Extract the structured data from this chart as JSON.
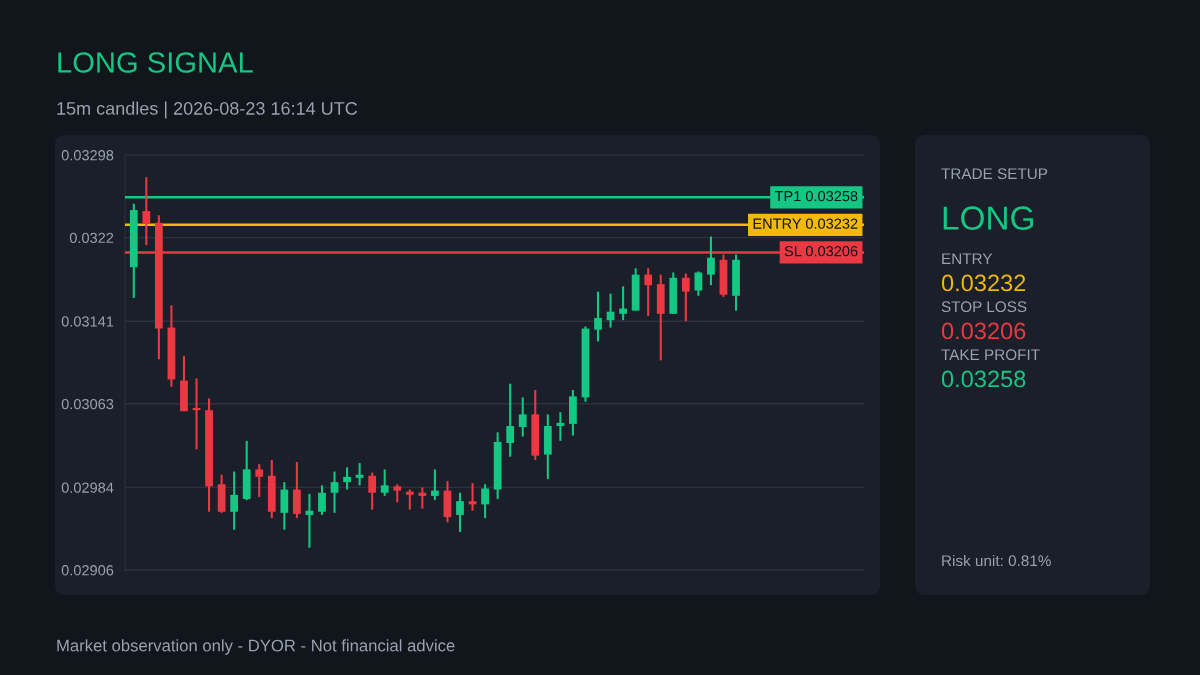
{
  "chart_data": [
    {
      "type": "candlestick",
      "title": "LONG SIGNAL",
      "subtitle": "15m candles | 2026-08-23 16:14 UTC",
      "annotations": [
        "Market observation only - DYOR - Not financial advice"
      ],
      "categories": [
        null,
        null,
        null,
        null,
        null,
        null,
        null,
        null,
        null,
        null,
        null,
        null,
        null,
        null,
        null,
        null,
        null,
        null,
        null,
        null,
        null,
        null,
        null,
        null,
        null,
        null,
        null,
        null,
        null,
        null,
        null,
        null,
        null,
        null,
        null,
        null,
        null,
        null,
        null,
        null,
        null,
        null,
        null,
        null,
        null,
        null,
        null,
        null,
        null
      ],
      "ohlc": [
        [
          0.03192,
          0.03252,
          0.03163,
          0.03246
        ],
        [
          0.03245,
          0.03277,
          0.03213,
          0.03233
        ],
        [
          0.03234,
          0.03241,
          0.03105,
          0.03134
        ],
        [
          0.03135,
          0.03156,
          0.03079,
          0.03086
        ],
        [
          0.03085,
          0.03108,
          0.03056,
          0.03056
        ],
        [
          0.03059,
          0.03087,
          0.0302,
          0.03057
        ],
        [
          0.03057,
          0.03068,
          0.02961,
          0.02985
        ],
        [
          0.02987,
          0.02996,
          0.0296,
          0.02961
        ],
        [
          0.02961,
          0.02999,
          0.02944,
          0.02977
        ],
        [
          0.02973,
          0.03028,
          0.02972,
          0.03001
        ],
        [
          0.03001,
          0.03006,
          0.02975,
          0.02994
        ],
        [
          0.02995,
          0.0301,
          0.02955,
          0.02961
        ],
        [
          0.0296,
          0.02989,
          0.02944,
          0.02982
        ],
        [
          0.02982,
          0.03008,
          0.02955,
          0.02959
        ],
        [
          0.02958,
          0.02978,
          0.02927,
          0.02962
        ],
        [
          0.02961,
          0.02986,
          0.02958,
          0.02979
        ],
        [
          0.02979,
          0.02999,
          0.0296,
          0.02989
        ],
        [
          0.02989,
          0.03003,
          0.02982,
          0.02994
        ],
        [
          0.02993,
          0.03007,
          0.02986,
          0.02996
        ],
        [
          0.02995,
          0.02998,
          0.02963,
          0.02979
        ],
        [
          0.02979,
          0.03001,
          0.02976,
          0.02986
        ],
        [
          0.02985,
          0.02987,
          0.0297,
          0.02981
        ],
        [
          0.0298,
          0.02982,
          0.02963,
          0.02977
        ],
        [
          0.02979,
          0.02984,
          0.02964,
          0.02976
        ],
        [
          0.02976,
          0.03001,
          0.02972,
          0.02981
        ],
        [
          0.02981,
          0.0299,
          0.02951,
          0.02956
        ],
        [
          0.02958,
          0.02979,
          0.02942,
          0.02971
        ],
        [
          0.02971,
          0.02988,
          0.02962,
          0.02968
        ],
        [
          0.02968,
          0.02987,
          0.02955,
          0.02983
        ],
        [
          0.02982,
          0.03036,
          0.02973,
          0.03027
        ],
        [
          0.03026,
          0.03082,
          0.03013,
          0.03042
        ],
        [
          0.03041,
          0.03069,
          0.03032,
          0.03053
        ],
        [
          0.03053,
          0.03076,
          0.0301,
          0.03014
        ],
        [
          0.03015,
          0.03053,
          0.02992,
          0.03042
        ],
        [
          0.03042,
          0.03055,
          0.03028,
          0.03045
        ],
        [
          0.03044,
          0.03076,
          0.03033,
          0.0307
        ],
        [
          0.03069,
          0.03136,
          0.03065,
          0.03134
        ],
        [
          0.03133,
          0.03169,
          0.03122,
          0.03144
        ],
        [
          0.03142,
          0.03167,
          0.03135,
          0.0315
        ],
        [
          0.03148,
          0.03174,
          0.03142,
          0.03153
        ],
        [
          0.03151,
          0.03191,
          0.03151,
          0.03185
        ],
        [
          0.03185,
          0.03191,
          0.03146,
          0.03175
        ],
        [
          0.03176,
          0.03185,
          0.03104,
          0.03148
        ],
        [
          0.03148,
          0.03187,
          0.03148,
          0.03182
        ],
        [
          0.03182,
          0.03186,
          0.03141,
          0.03169
        ],
        [
          0.0317,
          0.03188,
          0.03165,
          0.03187
        ],
        [
          0.03185,
          0.03221,
          0.03175,
          0.03201
        ],
        [
          0.03199,
          0.03204,
          0.03164,
          0.03166
        ],
        [
          0.03165,
          0.03204,
          0.03151,
          0.03199
        ]
      ],
      "colors": [
        "#16c784",
        "#ea3943",
        "#ea3943",
        "#ea3943",
        "#ea3943",
        "#ea3943",
        "#ea3943",
        "#ea3943",
        "#16c784",
        "#16c784",
        "#ea3943",
        "#ea3943",
        "#16c784",
        "#ea3943",
        "#16c784",
        "#16c784",
        "#16c784",
        "#16c784",
        "#16c784",
        "#ea3943",
        "#16c784",
        "#ea3943",
        "#ea3943",
        "#ea3943",
        "#16c784",
        "#ea3943",
        "#16c784",
        "#ea3943",
        "#16c784",
        "#16c784",
        "#16c784",
        "#16c784",
        "#ea3943",
        "#16c784",
        "#16c784",
        "#16c784",
        "#16c784",
        "#16c784",
        "#16c784",
        "#16c784",
        "#16c784",
        "#ea3943",
        "#ea3943",
        "#16c784",
        "#ea3943",
        "#16c784",
        "#16c784",
        "#ea3943",
        "#16c784"
      ],
      "ylim": [
        0.02906,
        0.03298
      ],
      "yticks": [
        0.02906,
        0.02984,
        0.03063,
        0.03141,
        0.0322,
        0.03298
      ],
      "grid": "y",
      "tick_labels": "y",
      "ref_lines": [
        {
          "axis": "y",
          "value": 0.03258,
          "label": "TP1 0.03258",
          "color": "#16c784"
        },
        {
          "axis": "y",
          "value": 0.03232,
          "label": "ENTRY 0.03232",
          "color": "#f0b90b"
        },
        {
          "axis": "y",
          "value": 0.03206,
          "label": "SL 0.03206",
          "color": "#ea3943"
        }
      ]
    },
    {
      "type": "other",
      "title": "TRADE SETUP",
      "subtitle": "LONG",
      "annotations": [
        "ENTRY",
        "0.03232",
        "STOP LOSS",
        "0.03206",
        "TAKE PROFIT",
        "0.03258",
        "Risk unit: 0.81%"
      ]
    }
  ]
}
